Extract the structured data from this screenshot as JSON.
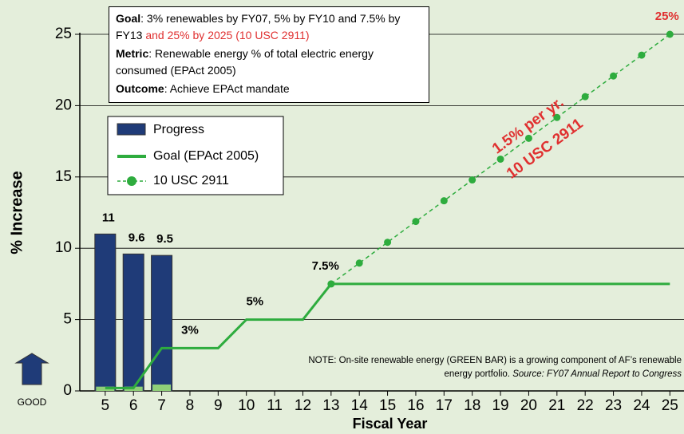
{
  "chart_data": {
    "type": "line",
    "y_label": "% Increase",
    "x_label": "Fiscal Year",
    "x": [
      5,
      6,
      7,
      8,
      9,
      10,
      11,
      12,
      13,
      14,
      15,
      16,
      17,
      18,
      19,
      20,
      21,
      22,
      23,
      24,
      25
    ],
    "xlim": [
      4.1,
      25.5
    ],
    "xticks": [
      5,
      6,
      7,
      8,
      9,
      10,
      11,
      12,
      13,
      14,
      15,
      16,
      17,
      18,
      19,
      20,
      21,
      22,
      23,
      24,
      25
    ],
    "ylim": [
      0,
      25
    ],
    "yticks": [
      0,
      5,
      10,
      15,
      20,
      25
    ],
    "grid": true,
    "bars": {
      "x": [
        5,
        6,
        7
      ],
      "series": [
        {
          "name": "Progress",
          "color": "#1f3b78",
          "values": [
            11,
            9.6,
            9.5
          ]
        },
        {
          "color": "#8fcf78",
          "values": [
            0.3,
            0.3,
            0.45
          ]
        }
      ]
    },
    "series": [
      {
        "name": "Goal (EPAct 2005)",
        "color": "#2eac3e",
        "values": [
          0.2,
          0.2,
          3,
          3,
          3,
          5,
          5,
          5,
          7.5,
          7.5,
          7.5,
          7.5,
          7.5,
          7.5,
          7.5,
          7.5,
          7.5,
          7.5,
          7.5,
          7.5,
          7.5
        ]
      },
      {
        "name": "10 USC 2911",
        "color": "#2eac3e",
        "dashed": true,
        "markers": true,
        "values": [
          null,
          null,
          null,
          null,
          null,
          null,
          null,
          null,
          7.5,
          8.96,
          10.42,
          11.88,
          13.33,
          14.79,
          16.25,
          17.71,
          19.17,
          20.63,
          22.08,
          23.54,
          25
        ]
      }
    ],
    "annotations": [
      {
        "text": "3%",
        "x": 8,
        "y": 3
      },
      {
        "text": "5%",
        "x": 10.3,
        "y": 5
      },
      {
        "text": "7.5%",
        "x": 12.8,
        "y": 7.5
      },
      {
        "text": "25%",
        "x": 24.9,
        "y": 25
      }
    ],
    "slope_labels": [
      "1.5% per yr.",
      "10 USC 2911"
    ],
    "good_label": "GOOD",
    "box": [
      {
        "label": "Goal",
        "text": ":  3% renewables by FY07, 5% by FY10 and 7.5% by FY13 ",
        "red": "and 25% by 2025 (10 USC 2911)"
      },
      {
        "label": "Metric",
        "text": ":  Renewable energy % of total electric energy consumed (EPAct 2005)"
      },
      {
        "label": "Outcome",
        "text": ":  Achieve EPAct mandate"
      }
    ],
    "note": {
      "text": "NOTE: On-site renewable energy (GREEN BAR) is a growing component of AF’s renewable energy portfolio. ",
      "source": "Source: FY07 Annual Report to Congress"
    }
  }
}
